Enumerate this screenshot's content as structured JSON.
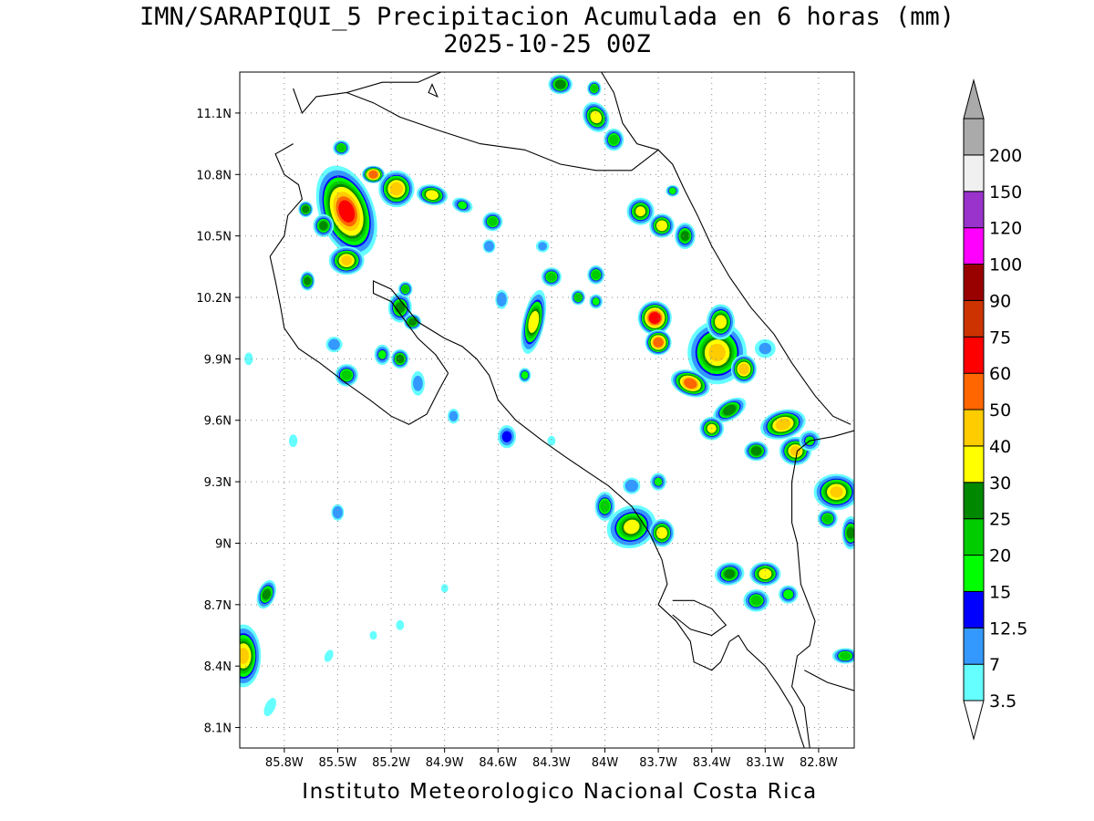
{
  "title": {
    "line1": "IMN/SARAPIQUI_5 Precipitacion Acumulada en 6 horas (mm)",
    "line2": "2025-10-25 00Z"
  },
  "footer": "Instituto Meteorologico Nacional Costa Rica",
  "map": {
    "lon_range": [
      -86.05,
      -82.6
    ],
    "lat_range": [
      8.0,
      11.3
    ],
    "x_ticks": [
      {
        "lon": -85.8,
        "label": "85.8W"
      },
      {
        "lon": -85.5,
        "label": "85.5W"
      },
      {
        "lon": -85.2,
        "label": "85.2W"
      },
      {
        "lon": -84.9,
        "label": "84.9W"
      },
      {
        "lon": -84.6,
        "label": "84.6W"
      },
      {
        "lon": -84.3,
        "label": "84.3W"
      },
      {
        "lon": -84.0,
        "label": "84W"
      },
      {
        "lon": -83.7,
        "label": "83.7W"
      },
      {
        "lon": -83.4,
        "label": "83.4W"
      },
      {
        "lon": -83.1,
        "label": "83.1W"
      },
      {
        "lon": -82.8,
        "label": "82.8W"
      }
    ],
    "y_ticks": [
      {
        "lat": 8.1,
        "label": "8.1N"
      },
      {
        "lat": 8.4,
        "label": "8.4N"
      },
      {
        "lat": 8.7,
        "label": "8.7N"
      },
      {
        "lat": 9.0,
        "label": "9N"
      },
      {
        "lat": 9.3,
        "label": "9.3N"
      },
      {
        "lat": 9.6,
        "label": "9.6N"
      },
      {
        "lat": 9.9,
        "label": "9.9N"
      },
      {
        "lat": 10.2,
        "label": "10.2N"
      },
      {
        "lat": 10.5,
        "label": "10.5N"
      },
      {
        "lat": 10.8,
        "label": "10.8N"
      },
      {
        "lat": 11.1,
        "label": "11.1N"
      }
    ],
    "grid": true
  },
  "colorbar": {
    "levels": [
      {
        "label": "3.5",
        "color": "#66ffff"
      },
      {
        "label": "7",
        "color": "#3399ff"
      },
      {
        "label": "12.5",
        "color": "#0000ff"
      },
      {
        "label": "15",
        "color": "#00ff00"
      },
      {
        "label": "20",
        "color": "#00cc00"
      },
      {
        "label": "25",
        "color": "#008800"
      },
      {
        "label": "30",
        "color": "#ffff00"
      },
      {
        "label": "40",
        "color": "#ffcc00"
      },
      {
        "label": "50",
        "color": "#ff6600"
      },
      {
        "label": "60",
        "color": "#ff0000"
      },
      {
        "label": "75",
        "color": "#cc3300"
      },
      {
        "label": "90",
        "color": "#990000"
      },
      {
        "label": "100",
        "color": "#ff00ff"
      },
      {
        "label": "120",
        "color": "#9933cc"
      },
      {
        "label": "150",
        "color": "#f0f0f0"
      },
      {
        "label": "200",
        "color": "#aaaaaa"
      }
    ]
  },
  "precip_cells": [
    {
      "lon": -85.45,
      "lat": 10.62,
      "rx": 0.14,
      "ry": 0.22,
      "rot": -20,
      "max": 62
    },
    {
      "lon": -85.3,
      "lat": 10.8,
      "rx": 0.05,
      "ry": 0.03,
      "rot": 0,
      "max": 55
    },
    {
      "lon": -85.17,
      "lat": 10.73,
      "rx": 0.09,
      "ry": 0.08,
      "rot": 0,
      "max": 45
    },
    {
      "lon": -85.45,
      "lat": 10.38,
      "rx": 0.09,
      "ry": 0.06,
      "rot": 0,
      "max": 40
    },
    {
      "lon": -85.58,
      "lat": 10.55,
      "rx": 0.05,
      "ry": 0.05,
      "rot": 0,
      "max": 25
    },
    {
      "lon": -85.67,
      "lat": 10.28,
      "rx": 0.03,
      "ry": 0.04,
      "rot": 0,
      "max": 25
    },
    {
      "lon": -85.68,
      "lat": 10.63,
      "rx": 0.03,
      "ry": 0.03,
      "rot": 0,
      "max": 25
    },
    {
      "lon": -85.48,
      "lat": 10.93,
      "rx": 0.04,
      "ry": 0.03,
      "rot": 0,
      "max": 20
    },
    {
      "lon": -84.97,
      "lat": 10.7,
      "rx": 0.08,
      "ry": 0.04,
      "rot": 10,
      "max": 35
    },
    {
      "lon": -84.8,
      "lat": 10.65,
      "rx": 0.06,
      "ry": 0.03,
      "rot": 20,
      "max": 15
    },
    {
      "lon": -84.63,
      "lat": 10.57,
      "rx": 0.05,
      "ry": 0.04,
      "rot": 0,
      "max": 22
    },
    {
      "lon": -84.65,
      "lat": 10.45,
      "rx": 0.03,
      "ry": 0.03,
      "rot": 0,
      "max": 12
    },
    {
      "lon": -85.15,
      "lat": 10.15,
      "rx": 0.06,
      "ry": 0.07,
      "rot": 0,
      "max": 25
    },
    {
      "lon": -85.08,
      "lat": 10.08,
      "rx": 0.04,
      "ry": 0.03,
      "rot": 0,
      "max": 25
    },
    {
      "lon": -85.12,
      "lat": 10.24,
      "rx": 0.03,
      "ry": 0.03,
      "rot": 0,
      "max": 20
    },
    {
      "lon": -85.45,
      "lat": 9.82,
      "rx": 0.06,
      "ry": 0.05,
      "rot": 0,
      "max": 22
    },
    {
      "lon": -85.25,
      "lat": 9.92,
      "rx": 0.04,
      "ry": 0.05,
      "rot": 0,
      "max": 15
    },
    {
      "lon": -85.15,
      "lat": 9.9,
      "rx": 0.04,
      "ry": 0.04,
      "rot": 0,
      "max": 25
    },
    {
      "lon": -85.52,
      "lat": 9.97,
      "rx": 0.05,
      "ry": 0.04,
      "rot": 0,
      "max": 10
    },
    {
      "lon": -85.05,
      "lat": 9.78,
      "rx": 0.04,
      "ry": 0.08,
      "rot": 0,
      "max": 9
    },
    {
      "lon": -84.4,
      "lat": 10.08,
      "rx": 0.05,
      "ry": 0.16,
      "rot": 12,
      "max": 35
    },
    {
      "lon": -84.3,
      "lat": 10.3,
      "rx": 0.05,
      "ry": 0.04,
      "rot": 0,
      "max": 22
    },
    {
      "lon": -84.15,
      "lat": 10.2,
      "rx": 0.03,
      "ry": 0.03,
      "rot": 0,
      "max": 20
    },
    {
      "lon": -84.05,
      "lat": 10.31,
      "rx": 0.04,
      "ry": 0.04,
      "rot": 0,
      "max": 22
    },
    {
      "lon": -84.05,
      "lat": 10.18,
      "rx": 0.03,
      "ry": 0.03,
      "rot": 0,
      "max": 15
    },
    {
      "lon": -84.58,
      "lat": 10.19,
      "rx": 0.03,
      "ry": 0.05,
      "rot": 0,
      "max": 12
    },
    {
      "lon": -84.35,
      "lat": 10.45,
      "rx": 0.04,
      "ry": 0.03,
      "rot": 0,
      "max": 8
    },
    {
      "lon": -84.45,
      "lat": 9.82,
      "rx": 0.025,
      "ry": 0.03,
      "rot": 0,
      "max": 16
    },
    {
      "lon": -83.72,
      "lat": 10.1,
      "rx": 0.08,
      "ry": 0.07,
      "rot": 0,
      "max": 65
    },
    {
      "lon": -83.7,
      "lat": 9.98,
      "rx": 0.06,
      "ry": 0.05,
      "rot": 0,
      "max": 55
    },
    {
      "lon": -83.37,
      "lat": 9.93,
      "rx": 0.16,
      "ry": 0.15,
      "rot": 0,
      "max": 42
    },
    {
      "lon": -83.35,
      "lat": 10.08,
      "rx": 0.07,
      "ry": 0.08,
      "rot": 0,
      "max": 35
    },
    {
      "lon": -83.52,
      "lat": 9.78,
      "rx": 0.1,
      "ry": 0.05,
      "rot": 20,
      "max": 55
    },
    {
      "lon": -83.22,
      "lat": 9.85,
      "rx": 0.06,
      "ry": 0.06,
      "rot": 0,
      "max": 45
    },
    {
      "lon": -83.3,
      "lat": 9.65,
      "rx": 0.1,
      "ry": 0.04,
      "rot": -30,
      "max": 28
    },
    {
      "lon": -83.4,
      "lat": 9.56,
      "rx": 0.06,
      "ry": 0.05,
      "rot": 0,
      "max": 30
    },
    {
      "lon": -83.0,
      "lat": 9.58,
      "rx": 0.12,
      "ry": 0.06,
      "rot": -15,
      "max": 45
    },
    {
      "lon": -82.93,
      "lat": 9.45,
      "rx": 0.08,
      "ry": 0.06,
      "rot": 0,
      "max": 40
    },
    {
      "lon": -83.15,
      "lat": 9.45,
      "rx": 0.06,
      "ry": 0.04,
      "rot": 0,
      "max": 28
    },
    {
      "lon": -82.85,
      "lat": 9.5,
      "rx": 0.06,
      "ry": 0.05,
      "rot": 0,
      "max": 15
    },
    {
      "lon": -82.7,
      "lat": 9.25,
      "rx": 0.12,
      "ry": 0.08,
      "rot": 0,
      "max": 40
    },
    {
      "lon": -82.62,
      "lat": 9.05,
      "rx": 0.04,
      "ry": 0.08,
      "rot": 0,
      "max": 25
    },
    {
      "lon": -82.75,
      "lat": 9.12,
      "rx": 0.05,
      "ry": 0.04,
      "rot": 0,
      "max": 22
    },
    {
      "lon": -83.68,
      "lat": 10.55,
      "rx": 0.06,
      "ry": 0.05,
      "rot": 0,
      "max": 35
    },
    {
      "lon": -83.8,
      "lat": 10.62,
      "rx": 0.07,
      "ry": 0.06,
      "rot": 0,
      "max": 30
    },
    {
      "lon": -83.55,
      "lat": 10.5,
      "rx": 0.05,
      "ry": 0.06,
      "rot": 0,
      "max": 25
    },
    {
      "lon": -83.62,
      "lat": 10.72,
      "rx": 0.03,
      "ry": 0.02,
      "rot": 0,
      "max": 15
    },
    {
      "lon": -84.05,
      "lat": 11.08,
      "rx": 0.06,
      "ry": 0.07,
      "rot": -30,
      "max": 35
    },
    {
      "lon": -83.95,
      "lat": 10.97,
      "rx": 0.05,
      "ry": 0.05,
      "rot": 0,
      "max": 22
    },
    {
      "lon": -84.25,
      "lat": 11.24,
      "rx": 0.06,
      "ry": 0.04,
      "rot": 0,
      "max": 28
    },
    {
      "lon": -84.06,
      "lat": 11.22,
      "rx": 0.03,
      "ry": 0.03,
      "rot": 0,
      "max": 20
    },
    {
      "lon": -83.85,
      "lat": 9.08,
      "rx": 0.14,
      "ry": 0.1,
      "rot": -20,
      "max": 32
    },
    {
      "lon": -83.68,
      "lat": 9.05,
      "rx": 0.06,
      "ry": 0.06,
      "rot": 0,
      "max": 35
    },
    {
      "lon": -84.0,
      "lat": 9.18,
      "rx": 0.05,
      "ry": 0.07,
      "rot": 0,
      "max": 22
    },
    {
      "lon": -83.85,
      "lat": 9.28,
      "rx": 0.05,
      "ry": 0.04,
      "rot": 0,
      "max": 12
    },
    {
      "lon": -83.7,
      "lat": 9.3,
      "rx": 0.04,
      "ry": 0.04,
      "rot": 0,
      "max": 15
    },
    {
      "lon": -83.1,
      "lat": 8.85,
      "rx": 0.08,
      "ry": 0.05,
      "rot": 0,
      "max": 35
    },
    {
      "lon": -83.3,
      "lat": 8.85,
      "rx": 0.08,
      "ry": 0.05,
      "rot": -10,
      "max": 25
    },
    {
      "lon": -83.15,
      "lat": 8.72,
      "rx": 0.07,
      "ry": 0.05,
      "rot": 0,
      "max": 22
    },
    {
      "lon": -82.97,
      "lat": 8.75,
      "rx": 0.05,
      "ry": 0.04,
      "rot": 0,
      "max": 18
    },
    {
      "lon": -86.03,
      "lat": 8.45,
      "rx": 0.09,
      "ry": 0.15,
      "rot": 0,
      "max": 40
    },
    {
      "lon": -85.9,
      "lat": 8.75,
      "rx": 0.04,
      "ry": 0.07,
      "rot": 20,
      "max": 25
    },
    {
      "lon": -82.65,
      "lat": 8.45,
      "rx": 0.07,
      "ry": 0.03,
      "rot": 0,
      "max": 22
    },
    {
      "lon": -85.5,
      "lat": 9.15,
      "rx": 0.03,
      "ry": 0.04,
      "rot": 0,
      "max": 12
    },
    {
      "lon": -84.55,
      "lat": 9.52,
      "rx": 0.05,
      "ry": 0.06,
      "rot": 0,
      "max": 14
    },
    {
      "lon": -84.85,
      "lat": 9.62,
      "rx": 0.03,
      "ry": 0.04,
      "rot": 0,
      "max": 9
    },
    {
      "lon": -85.75,
      "lat": 9.5,
      "rx": 0.02,
      "ry": 0.04,
      "rot": 0,
      "max": 6
    },
    {
      "lon": -86.0,
      "lat": 9.9,
      "rx": 0.02,
      "ry": 0.04,
      "rot": 0,
      "max": 6
    },
    {
      "lon": -85.88,
      "lat": 8.2,
      "rx": 0.03,
      "ry": 0.08,
      "rot": 25,
      "max": 6
    },
    {
      "lon": -85.55,
      "lat": 8.45,
      "rx": 0.02,
      "ry": 0.05,
      "rot": 25,
      "max": 5
    },
    {
      "lon": -85.15,
      "lat": 8.6,
      "rx": 0.02,
      "ry": 0.03,
      "rot": 0,
      "max": 5
    },
    {
      "lon": -84.9,
      "lat": 8.78,
      "rx": 0.02,
      "ry": 0.03,
      "rot": 0,
      "max": 4
    },
    {
      "lon": -85.3,
      "lat": 8.55,
      "rx": 0.02,
      "ry": 0.03,
      "rot": 0,
      "max": 4
    },
    {
      "lon": -83.1,
      "lat": 9.95,
      "rx": 0.08,
      "ry": 0.06,
      "rot": 0,
      "max": 8
    },
    {
      "lon": -84.3,
      "lat": 9.5,
      "rx": 0.02,
      "ry": 0.03,
      "rot": 0,
      "max": 5
    }
  ]
}
